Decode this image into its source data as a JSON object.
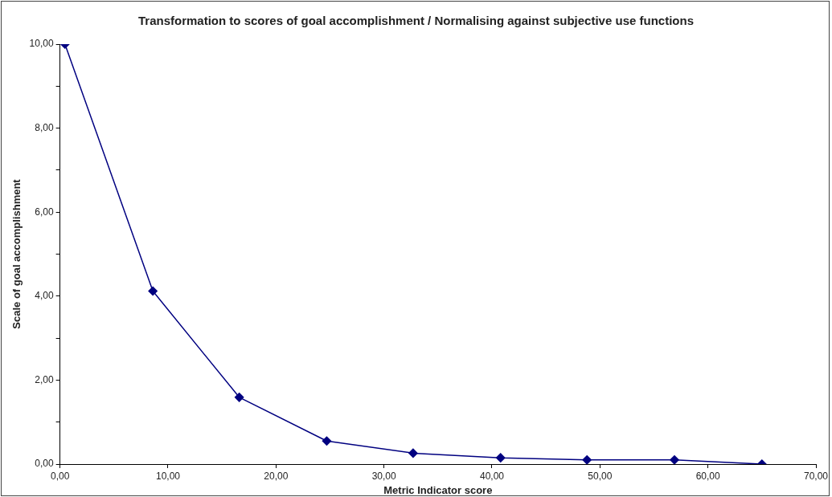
{
  "chart_data": {
    "type": "line",
    "title": "Transformation to scores of goal accomplishment / Normalising against subjective use functions",
    "xlabel": "Metric Indicator score",
    "ylabel": "Scale of goal accomplishment",
    "x": [
      0.46,
      8.6,
      16.6,
      24.7,
      32.7,
      40.8,
      48.8,
      56.9,
      65.0
    ],
    "series": [
      {
        "color": "#000080",
        "values": [
          10,
          4.12,
          1.59,
          0.55,
          0.26,
          0.15,
          0.1,
          0.1,
          0
        ]
      }
    ],
    "xlim": [
      0,
      70
    ],
    "xticks": [
      {
        "value": 0,
        "label": "0,00"
      },
      {
        "value": 10,
        "label": "10,00"
      },
      {
        "value": 20,
        "label": "20,00"
      },
      {
        "value": 30,
        "label": "30,00"
      },
      {
        "value": 40,
        "label": "40,00"
      },
      {
        "value": 50,
        "label": "50,00"
      },
      {
        "value": 60,
        "label": "60,00"
      },
      {
        "value": 70,
        "label": "70,00"
      }
    ],
    "ylim": [
      0,
      10
    ],
    "yticks": [
      {
        "value": 0,
        "label": "0,00"
      },
      {
        "value": 1,
        "label": null
      },
      {
        "value": 2,
        "label": "2,00"
      },
      {
        "value": 3,
        "label": null
      },
      {
        "value": 4,
        "label": "4,00"
      },
      {
        "value": 5,
        "label": null
      },
      {
        "value": 6,
        "label": "6,00"
      },
      {
        "value": 7,
        "label": null
      },
      {
        "value": 8,
        "label": "8,00"
      },
      {
        "value": 9,
        "label": null
      },
      {
        "value": 10,
        "label": "10,00"
      }
    ],
    "grid": false,
    "legend": false,
    "marker": "diamond",
    "line_style": "solid"
  }
}
